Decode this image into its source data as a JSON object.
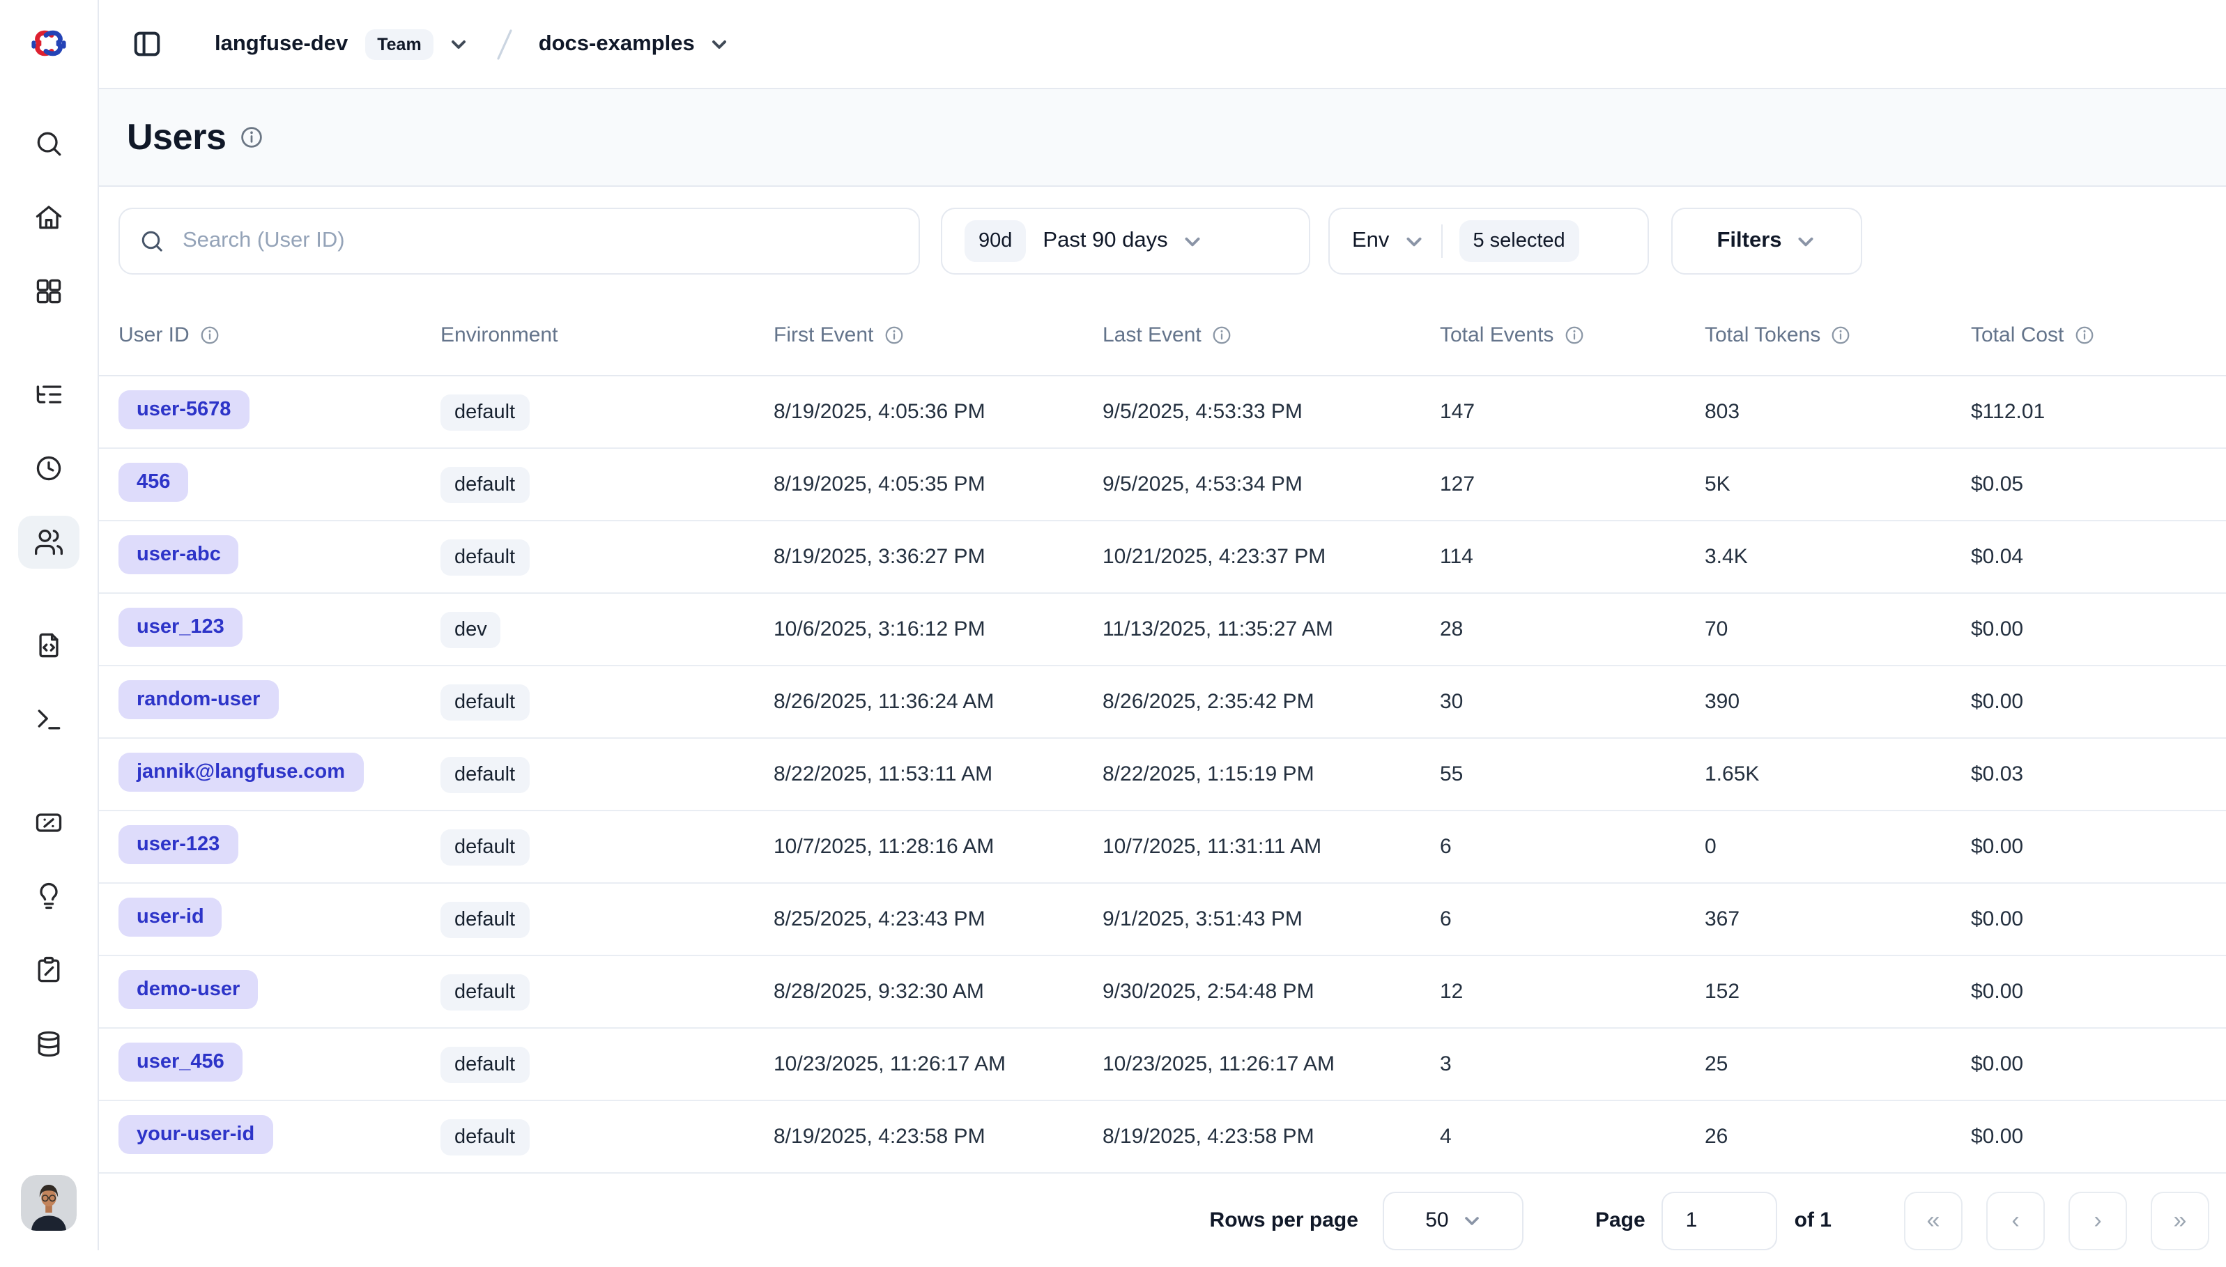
{
  "topbar": {
    "org": "langfuse-dev",
    "org_type_badge": "Team",
    "project": "docs-examples"
  },
  "sidebar": {
    "icons": [
      "search-icon",
      "home-icon",
      "dashboards-icon",
      "tracing-icon",
      "sessions-icon",
      "users-icon",
      "prompts-icon",
      "playground-icon",
      "scores-icon",
      "insights-icon",
      "annotation-icon",
      "datasets-icon"
    ],
    "active_item": "users"
  },
  "page": {
    "title": "Users"
  },
  "toolbar": {
    "search_placeholder": "Search (User ID)",
    "time_range_badge": "90d",
    "time_range_label": "Past 90 days",
    "env_label": "Env",
    "env_selected_badge": "5 selected",
    "filters_label": "Filters"
  },
  "table": {
    "columns": [
      {
        "label": "User ID",
        "info": true
      },
      {
        "label": "Environment",
        "info": false
      },
      {
        "label": "First Event",
        "info": true
      },
      {
        "label": "Last Event",
        "info": true
      },
      {
        "label": "Total Events",
        "info": true
      },
      {
        "label": "Total Tokens",
        "info": true
      },
      {
        "label": "Total Cost",
        "info": true
      }
    ],
    "rows": [
      {
        "user_id": "user-5678",
        "environment": "default",
        "first_event": "8/19/2025, 4:05:36 PM",
        "last_event": "9/5/2025, 4:53:33 PM",
        "total_events": "147",
        "total_tokens": "803",
        "total_cost": "$112.01"
      },
      {
        "user_id": "456",
        "environment": "default",
        "first_event": "8/19/2025, 4:05:35 PM",
        "last_event": "9/5/2025, 4:53:34 PM",
        "total_events": "127",
        "total_tokens": "5K",
        "total_cost": "$0.05"
      },
      {
        "user_id": "user-abc",
        "environment": "default",
        "first_event": "8/19/2025, 3:36:27 PM",
        "last_event": "10/21/2025, 4:23:37 PM",
        "total_events": "114",
        "total_tokens": "3.4K",
        "total_cost": "$0.04"
      },
      {
        "user_id": "user_123",
        "environment": "dev",
        "first_event": "10/6/2025, 3:16:12 PM",
        "last_event": "11/13/2025, 11:35:27 AM",
        "total_events": "28",
        "total_tokens": "70",
        "total_cost": "$0.00"
      },
      {
        "user_id": "random-user",
        "environment": "default",
        "first_event": "8/26/2025, 11:36:24 AM",
        "last_event": "8/26/2025, 2:35:42 PM",
        "total_events": "30",
        "total_tokens": "390",
        "total_cost": "$0.00"
      },
      {
        "user_id": "jannik@langfuse.com",
        "environment": "default",
        "first_event": "8/22/2025, 11:53:11 AM",
        "last_event": "8/22/2025, 1:15:19 PM",
        "total_events": "55",
        "total_tokens": "1.65K",
        "total_cost": "$0.03"
      },
      {
        "user_id": "user-123",
        "environment": "default",
        "first_event": "10/7/2025, 11:28:16 AM",
        "last_event": "10/7/2025, 11:31:11 AM",
        "total_events": "6",
        "total_tokens": "0",
        "total_cost": "$0.00"
      },
      {
        "user_id": "user-id",
        "environment": "default",
        "first_event": "8/25/2025, 4:23:43 PM",
        "last_event": "9/1/2025, 3:51:43 PM",
        "total_events": "6",
        "total_tokens": "367",
        "total_cost": "$0.00"
      },
      {
        "user_id": "demo-user",
        "environment": "default",
        "first_event": "8/28/2025, 9:32:30 AM",
        "last_event": "9/30/2025, 2:54:48 PM",
        "total_events": "12",
        "total_tokens": "152",
        "total_cost": "$0.00"
      },
      {
        "user_id": "user_456",
        "environment": "default",
        "first_event": "10/23/2025, 11:26:17 AM",
        "last_event": "10/23/2025, 11:26:17 AM",
        "total_events": "3",
        "total_tokens": "25",
        "total_cost": "$0.00"
      },
      {
        "user_id": "your-user-id",
        "environment": "default",
        "first_event": "8/19/2025, 4:23:58 PM",
        "last_event": "8/19/2025, 4:23:58 PM",
        "total_events": "4",
        "total_tokens": "26",
        "total_cost": "$0.00"
      }
    ]
  },
  "pagination": {
    "rows_per_page_label": "Rows per page",
    "rows_per_page_value": "50",
    "page_label": "Page",
    "page_value": "1",
    "of_label": "of 1",
    "buttons": [
      {
        "name": "first-page",
        "glyph": "«"
      },
      {
        "name": "previous-page",
        "glyph": "‹"
      },
      {
        "name": "next-page",
        "glyph": "›"
      },
      {
        "name": "last-page",
        "glyph": "»"
      }
    ]
  },
  "colors": {
    "accent_badge_bg": "#dedcfb",
    "accent_badge_text": "#2d34c8",
    "muted_badge_bg": "#f1f4f9",
    "border": "#e5e9f0",
    "title_bar_bg": "#f8fafc",
    "header_text": "#64748b",
    "logo_red": "#dd2030",
    "logo_blue": "#2443b6"
  }
}
